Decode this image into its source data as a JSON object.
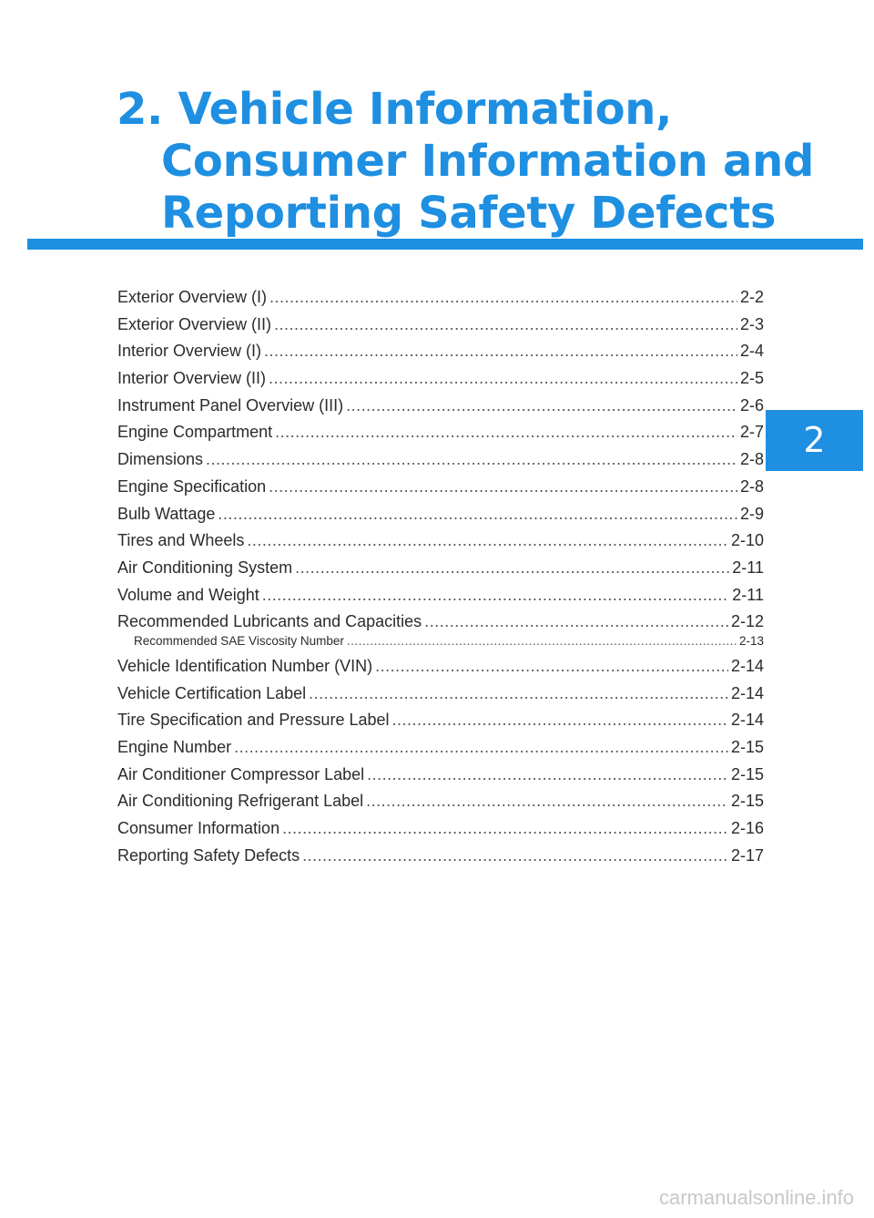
{
  "chapter": {
    "title_lines": [
      "2. Vehicle Information,",
      "Consumer Information and",
      "Reporting Safety Defects"
    ],
    "tab_number": "2"
  },
  "colors": {
    "accent": "#1e8fe1",
    "text": "#2b2b2b"
  },
  "toc": [
    {
      "label": "Exterior Overview (I)",
      "page": "2-2"
    },
    {
      "label": "Exterior Overview (II)",
      "page": "2-3"
    },
    {
      "label": "Interior Overview (I)",
      "page": "2-4"
    },
    {
      "label": "Interior Overview (II)",
      "page": "2-5"
    },
    {
      "label": "Instrument Panel Overview (III)",
      "page": "2-6"
    },
    {
      "label": "Engine Compartment",
      "page": "2-7"
    },
    {
      "label": "Dimensions",
      "page": "2-8"
    },
    {
      "label": "Engine Specification",
      "page": "2-8"
    },
    {
      "label": "Bulb Wattage",
      "page": "2-9"
    },
    {
      "label": "Tires and Wheels",
      "page": "2-10"
    },
    {
      "label": "Air Conditioning System",
      "page": "2-11"
    },
    {
      "label": "Volume and Weight",
      "page": "2-11"
    },
    {
      "label": "Recommended Lubricants and Capacities",
      "page": "2-12"
    },
    {
      "label": "Recommended SAE Viscosity Number",
      "page": "2-13"
    },
    {
      "label": "Vehicle Identification Number (VIN)",
      "page": "2-14"
    },
    {
      "label": "Vehicle Certification Label",
      "page": "2-14"
    },
    {
      "label": "Tire Specification and Pressure Label",
      "page": "2-14"
    },
    {
      "label": "Engine Number",
      "page": "2-15"
    },
    {
      "label": "Air Conditioner Compressor Label",
      "page": "2-15"
    },
    {
      "label": "Air Conditioning Refrigerant Label",
      "page": "2-15"
    },
    {
      "label": "Consumer Information",
      "page": "2-16"
    },
    {
      "label": "Reporting Safety Defects",
      "page": "2-17"
    }
  ],
  "watermark": "carmanualsonline.info"
}
